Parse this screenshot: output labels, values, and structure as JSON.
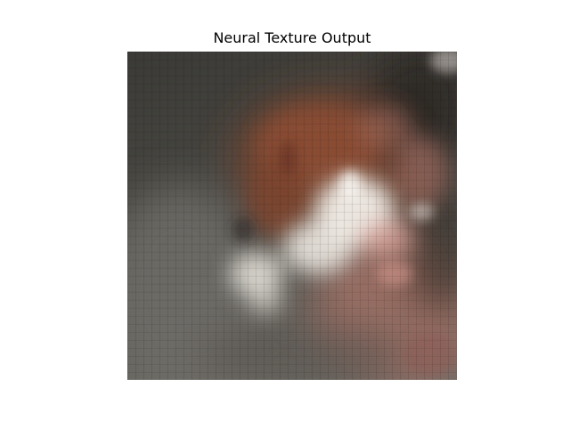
{
  "figure": {
    "title": "Neural Texture Output"
  },
  "image": {
    "description_icon": "blurry-generated-texture-image",
    "palette": {
      "dark_background": "#3d3b37",
      "gray_left": "#6b6a64",
      "rust_brown": "#8a4a32",
      "light_highlight": "#eeeae3",
      "pink_flesh": "#c28a7e",
      "dark_corner": "#2a2824"
    }
  }
}
